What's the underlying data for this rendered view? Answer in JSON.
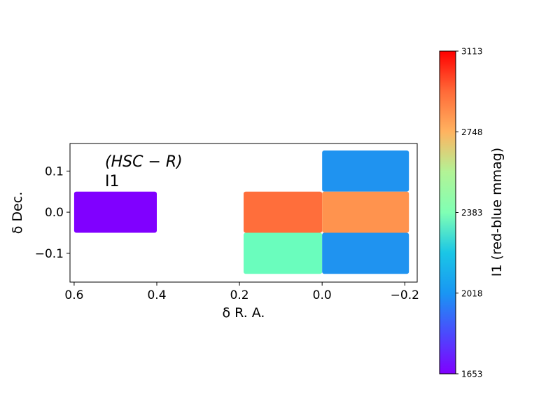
{
  "chart_data": {
    "type": "heatmap",
    "annotation": {
      "filter": "(HSC − R)",
      "label": "I1"
    },
    "xlabel": "δ R. A.",
    "ylabel": "δ Dec.",
    "xlim": [
      0.61,
      -0.23
    ],
    "ylim": [
      -0.17,
      0.167
    ],
    "x_ticks": [
      {
        "value": 0.6,
        "label": "0.6"
      },
      {
        "value": 0.4,
        "label": "0.4"
      },
      {
        "value": 0.2,
        "label": "0.2"
      },
      {
        "value": 0.0,
        "label": "0.0"
      },
      {
        "value": -0.2,
        "label": "−0.2"
      }
    ],
    "y_ticks": [
      {
        "value": 0.1,
        "label": "0.1"
      },
      {
        "value": 0.0,
        "label": "0.0"
      },
      {
        "value": -0.1,
        "label": "−0.1"
      }
    ],
    "cells": [
      {
        "x0": 0.6,
        "x1": 0.4,
        "y0": -0.05,
        "y1": 0.05,
        "value": 1653,
        "color": "#8000ff"
      },
      {
        "x0": 0.19,
        "x1": 0.0,
        "y0": -0.05,
        "y1": 0.05,
        "value": 2930,
        "color": "#ff6e3b"
      },
      {
        "x0": 0.19,
        "x1": 0.0,
        "y0": -0.15,
        "y1": -0.05,
        "value": 2290,
        "color": "#6afdbd"
      },
      {
        "x0": 0.0,
        "x1": -0.21,
        "y0": 0.05,
        "y1": 0.15,
        "value": 1960,
        "color": "#1f93f0"
      },
      {
        "x0": 0.0,
        "x1": -0.21,
        "y0": -0.05,
        "y1": 0.05,
        "value": 2820,
        "color": "#ff934e"
      },
      {
        "x0": 0.0,
        "x1": -0.21,
        "y0": -0.15,
        "y1": -0.05,
        "value": 1960,
        "color": "#1f93f0"
      }
    ],
    "colorbar": {
      "label": "I1 (red-blue mmag)",
      "min": 1653,
      "max": 3113,
      "colormap": "rainbow",
      "ticks": [
        {
          "value": 1653,
          "label": "1653"
        },
        {
          "value": 2018,
          "label": "2018"
        },
        {
          "value": 2383,
          "label": "2383"
        },
        {
          "value": 2748,
          "label": "2748"
        },
        {
          "value": 3113,
          "label": "3113"
        }
      ]
    }
  }
}
